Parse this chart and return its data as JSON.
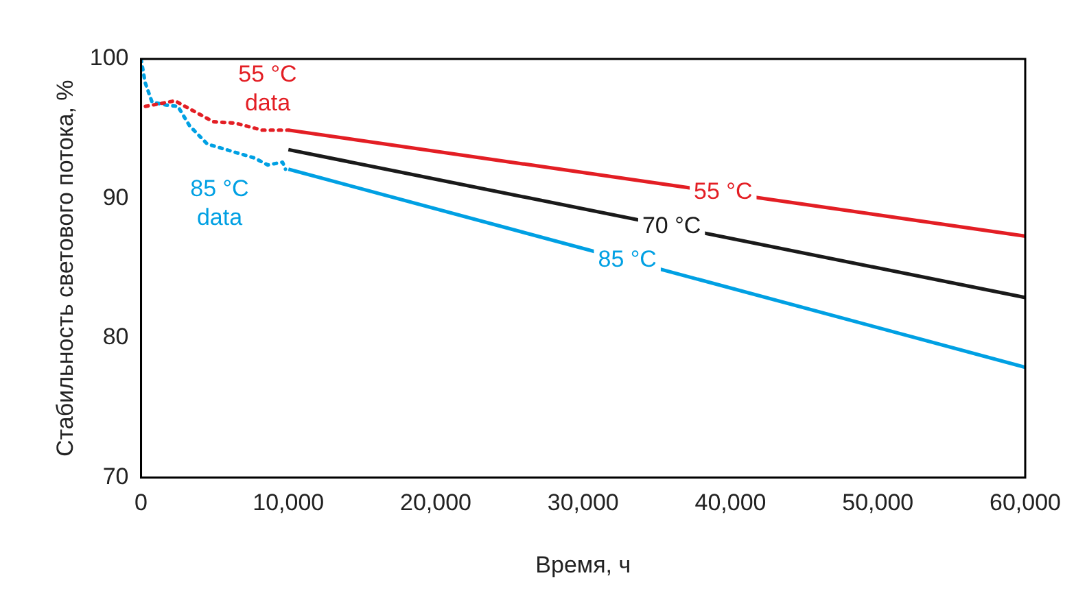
{
  "chart_data": {
    "type": "line",
    "xlabel": "Время, ч",
    "ylabel": "Стабильность светового потока, %",
    "xlim": [
      0,
      60000
    ],
    "ylim": [
      70,
      100
    ],
    "xticks": [
      0,
      {
        "value": 10000,
        "label": "10,000"
      },
      {
        "value": 20000,
        "label": "20,000"
      },
      {
        "value": 30000,
        "label": "30,000"
      },
      {
        "value": 40000,
        "label": "40,000"
      },
      {
        "value": 50000,
        "label": "50,000"
      },
      {
        "value": 60000,
        "label": "60,000"
      }
    ],
    "yticks": [
      70,
      80,
      90,
      100
    ],
    "grid": false,
    "legend": false,
    "marker": "none",
    "series": [
      {
        "name": "55 °C data",
        "color": "#e31e24",
        "line_style": "dotted",
        "x": [
          300,
          2300,
          4900,
          6400,
          8200,
          10000
        ],
        "values": [
          96.6,
          97.0,
          95.5,
          95.4,
          94.9,
          94.9
        ]
      },
      {
        "name": "85 °C data",
        "color": "#00a0e3",
        "line_style": "dotted",
        "x": [
          0,
          280,
          750,
          1700,
          2500,
          3300,
          4500,
          6100,
          7700,
          8600,
          9600,
          9800
        ],
        "values": [
          100,
          98.3,
          96.9,
          96.7,
          96.6,
          95.2,
          93.9,
          93.4,
          92.9,
          92.4,
          92.6,
          92.1
        ]
      },
      {
        "name": "55 °C",
        "color": "#e31e24",
        "line_style": "solid",
        "x": [
          10000,
          60000
        ],
        "values": [
          94.9,
          87.3
        ]
      },
      {
        "name": "70 °C",
        "color": "#1a1a1a",
        "line_style": "solid",
        "x": [
          10000,
          60000
        ],
        "values": [
          93.5,
          82.9
        ]
      },
      {
        "name": "85 °C",
        "color": "#00a0e3",
        "line_style": "solid",
        "x": [
          10000,
          60000
        ],
        "values": [
          92.1,
          77.9
        ]
      }
    ]
  }
}
